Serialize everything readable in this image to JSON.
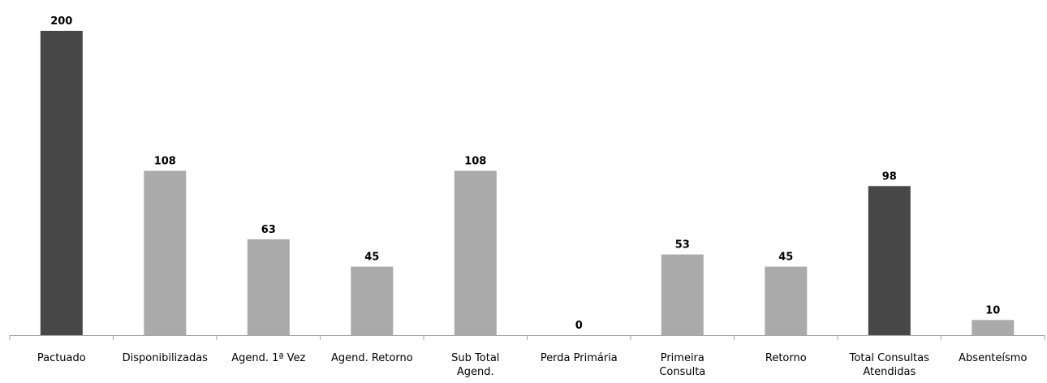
{
  "chart_data": {
    "type": "bar",
    "title": "",
    "xlabel": "",
    "ylabel": "",
    "ylim": [
      0,
      200
    ],
    "grid": false,
    "legend": "none",
    "categories": [
      [
        "Pactuado"
      ],
      [
        "Disponibilizadas"
      ],
      [
        "Agend. 1ª Vez"
      ],
      [
        "Agend. Retorno"
      ],
      [
        "Sub Total",
        "Agend."
      ],
      [
        "Perda Primária"
      ],
      [
        "Primeira",
        "Consulta"
      ],
      [
        "Retorno"
      ],
      [
        "Total Consultas",
        "Atendidas"
      ],
      [
        "Absenteísmo"
      ]
    ],
    "values": [
      200,
      108,
      63,
      45,
      108,
      0,
      53,
      45,
      98,
      10
    ],
    "value_labels": [
      "200",
      "108",
      "63",
      "45",
      "108",
      "0",
      "53",
      "45",
      "98",
      "10"
    ],
    "bar_colors": [
      "#474747",
      "#aaaaaa",
      "#aaaaaa",
      "#aaaaaa",
      "#aaaaaa",
      "#aaaaaa",
      "#aaaaaa",
      "#aaaaaa",
      "#474747",
      "#aaaaaa"
    ],
    "axis_color": "#a6a6a6"
  }
}
